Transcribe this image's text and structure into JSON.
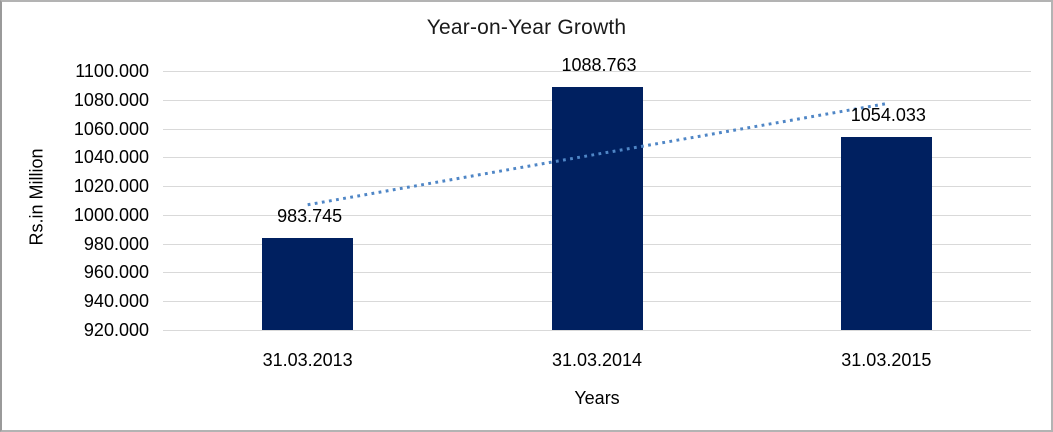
{
  "chart_data": {
    "type": "bar",
    "title": "Year-on-Year Growth",
    "xlabel": "Years",
    "ylabel": "Rs.in Million",
    "categories": [
      "31.03.2013",
      "31.03.2014",
      "31.03.2015"
    ],
    "values": [
      983.745,
      1088.763,
      1054.033
    ],
    "data_labels": [
      "983.745",
      "1088.763",
      "1054.033"
    ],
    "ylim": [
      920,
      1100
    ],
    "y_tick_step": 20,
    "y_tick_labels": [
      "920.000",
      "940.000",
      "960.000",
      "980.000",
      "1000.000",
      "1020.000",
      "1040.000",
      "1060.000",
      "1080.000",
      "1100.000"
    ],
    "grid": true,
    "legend_position": "none",
    "bar_color": "#002060",
    "gridline_color": "#d9d9d9",
    "text_color": "#000000",
    "frame_border_color": "#b3b3b3",
    "trendline": {
      "type": "linear",
      "style": "dotted",
      "color": "#4f86c6"
    }
  }
}
